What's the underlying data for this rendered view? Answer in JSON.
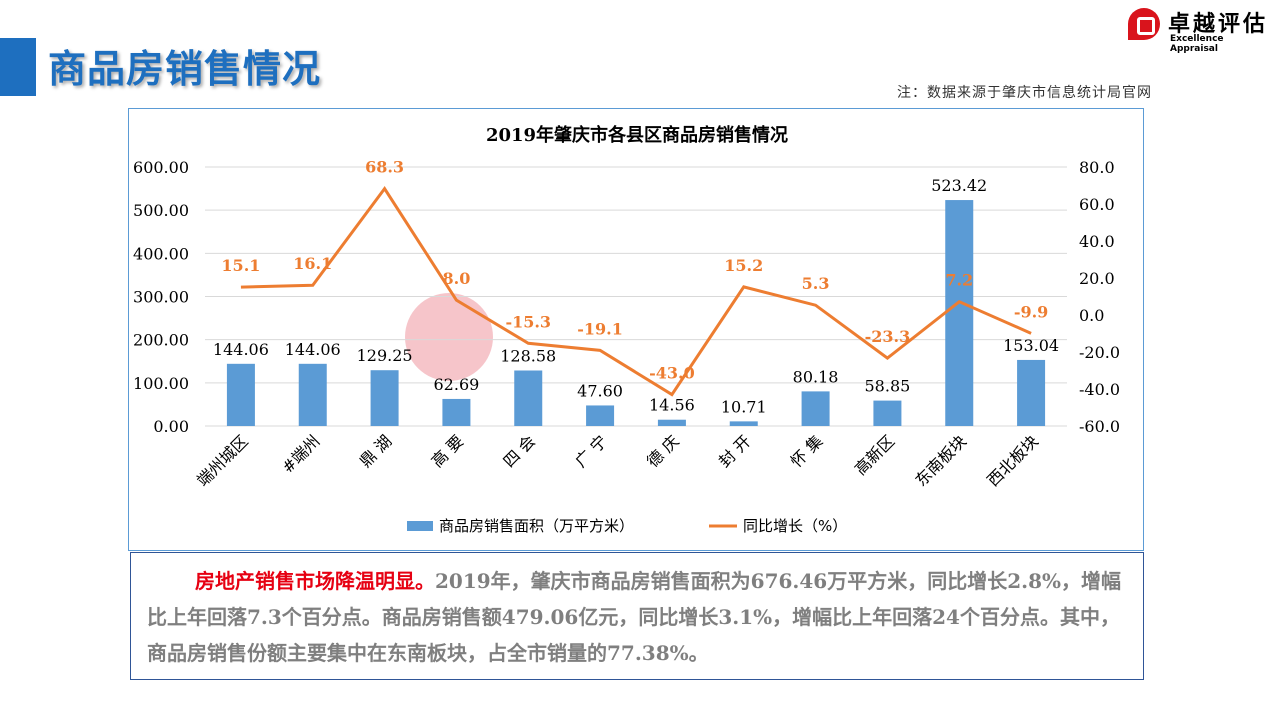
{
  "header": {
    "title": "商品房销售情况",
    "note": "注：数据来源于肇庆市信息统计局官网"
  },
  "logo": {
    "cn": "卓越评估",
    "en": "Excellence Appraisal"
  },
  "watermark": {
    "cn": "卓越评估",
    "en": "Excellence Appraisal"
  },
  "chart_data": {
    "type": "bar+line",
    "title": "2019年肇庆市各县区商品房销售情况",
    "categories": [
      "端州城区",
      "#端州",
      "鼎 湖",
      "高 要",
      "四 会",
      "广 宁",
      "德 庆",
      "封 开",
      "怀 集",
      "高新区",
      "东南板块",
      "西北板块"
    ],
    "series": [
      {
        "name": "商品房销售面积（万平方米）",
        "type": "bar",
        "axis": "left",
        "color": "#5b9bd5",
        "values": [
          144.06,
          144.06,
          129.25,
          62.69,
          128.58,
          47.6,
          14.56,
          10.71,
          80.18,
          58.85,
          523.42,
          153.04
        ],
        "labels": [
          "144.06",
          "144.06",
          "129.25",
          "62.69",
          "128.58",
          "47.60",
          "14.56",
          "10.71",
          "80.18",
          "58.85",
          "523.42",
          "153.04"
        ]
      },
      {
        "name": "同比增长（%）",
        "type": "line",
        "axis": "right",
        "color": "#ed7d31",
        "values": [
          15.1,
          16.1,
          68.3,
          8.0,
          -15.3,
          -19.1,
          -43.0,
          15.2,
          5.3,
          -23.3,
          7.2,
          -9.9
        ],
        "labels": [
          "15.1",
          "16.1",
          "68.3",
          "8.0",
          "-15.3",
          "-19.1",
          "-43.0",
          "15.2",
          "5.3",
          "-23.3",
          "7.2",
          "-9.9"
        ]
      }
    ],
    "left_axis": {
      "ylim": [
        0,
        600
      ],
      "ticks": [
        "0.00",
        "100.00",
        "200.00",
        "300.00",
        "400.00",
        "500.00",
        "600.00"
      ]
    },
    "right_axis": {
      "ylim": [
        -60,
        80
      ],
      "ticks": [
        "-60.0",
        "-40.0",
        "-20.0",
        "0.0",
        "20.0",
        "40.0",
        "60.0",
        "80.0"
      ]
    },
    "grid": true,
    "legend": "bottom"
  },
  "summary": {
    "lead": "房地产销售市场降温明显。",
    "body": "2019年，肇庆市商品房销售面积为676.46万平方米，同比增长2.8%，增幅比上年回落7.3个百分点。商品房销售额479.06亿元，同比增长3.1%，增幅比上年回落24个百分点。其中，商品房销售份额主要集中在东南板块，占全市销量的77.38%。"
  }
}
